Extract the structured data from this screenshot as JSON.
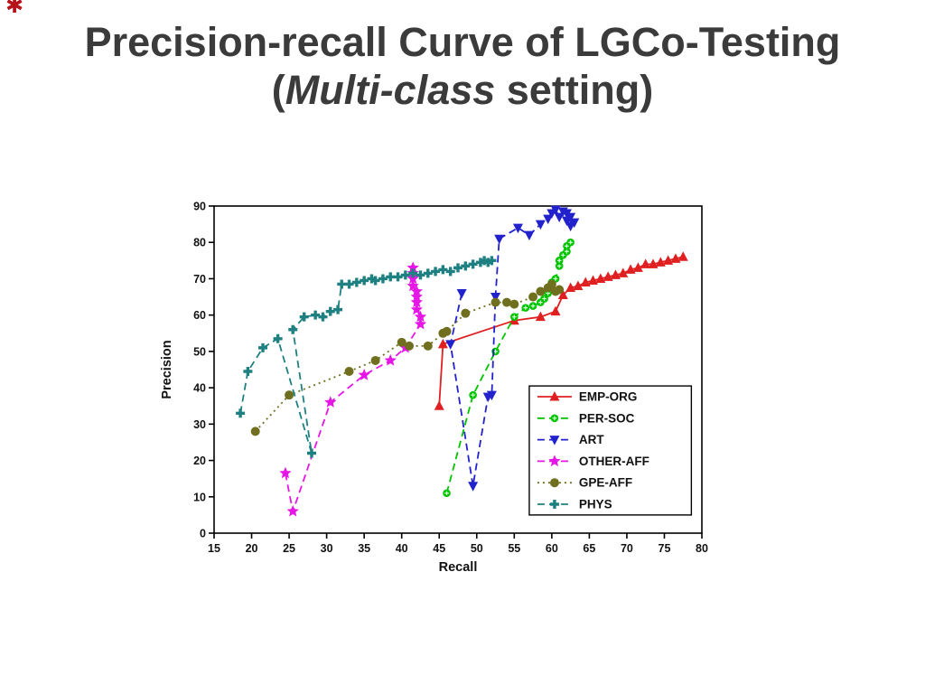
{
  "slide": {
    "logo_glyph": "✱",
    "title": {
      "line1": "Precision-recall Curve of LGCo-Testing",
      "line2_open": "(",
      "line2_italic": "Multi-class",
      "line2_rest": " setting)"
    }
  },
  "chart_data": {
    "type": "line",
    "title": "Precision-recall Curve of LGCo-Testing (Multi-class setting)",
    "xlabel": "Recall",
    "ylabel": "Precision",
    "xlim": [
      15,
      80
    ],
    "ylim": [
      0,
      90
    ],
    "xticks": [
      15,
      20,
      25,
      30,
      35,
      40,
      45,
      50,
      55,
      60,
      65,
      70,
      75,
      80
    ],
    "yticks": [
      0,
      10,
      20,
      30,
      40,
      50,
      60,
      70,
      80,
      90
    ],
    "grid": false,
    "legend_position": "inside lower right",
    "series": [
      {
        "name": "EMP-ORG",
        "color": "#e02020",
        "line_style": "solid",
        "marker": "triangle-up",
        "points": [
          [
            45,
            35
          ],
          [
            45.5,
            52
          ],
          [
            55,
            58.5
          ],
          [
            58.5,
            59.5
          ],
          [
            60.5,
            61
          ],
          [
            61.5,
            65.5
          ],
          [
            62.5,
            67.5
          ],
          [
            63.5,
            68
          ],
          [
            64.5,
            69
          ],
          [
            65.5,
            69.5
          ],
          [
            66.5,
            70
          ],
          [
            67.5,
            70.5
          ],
          [
            68.5,
            71
          ],
          [
            69.5,
            71.5
          ],
          [
            70.5,
            72.5
          ],
          [
            71.5,
            73
          ],
          [
            72.5,
            74
          ],
          [
            73.5,
            74
          ],
          [
            74.5,
            74.5
          ],
          [
            75.5,
            75
          ],
          [
            76.5,
            75.5
          ],
          [
            77.5,
            76
          ]
        ]
      },
      {
        "name": "PER-SOC",
        "color": "#00c400",
        "line_style": "dashed",
        "marker": "circle-plus",
        "points": [
          [
            46,
            11
          ],
          [
            49.5,
            38
          ],
          [
            52.5,
            50
          ],
          [
            55,
            59.5
          ],
          [
            56.5,
            62
          ],
          [
            57.5,
            62.5
          ],
          [
            58.5,
            63.5
          ],
          [
            59,
            64.5
          ],
          [
            59.5,
            66
          ],
          [
            60,
            69
          ],
          [
            60.5,
            70
          ],
          [
            61,
            73.5
          ],
          [
            61,
            75
          ],
          [
            61.5,
            76.5
          ],
          [
            62,
            77.5
          ],
          [
            62,
            79
          ],
          [
            62.5,
            80
          ]
        ]
      },
      {
        "name": "ART",
        "color": "#2222cc",
        "line_style": "dashed",
        "marker": "triangle-down",
        "points": [
          [
            48,
            66
          ],
          [
            46.5,
            52
          ],
          [
            49.5,
            13
          ],
          [
            51.5,
            37.5
          ],
          [
            52,
            38
          ],
          [
            52.5,
            65
          ],
          [
            53,
            81
          ],
          [
            55.5,
            84
          ],
          [
            57,
            82
          ],
          [
            58.5,
            85
          ],
          [
            59.5,
            86.5
          ],
          [
            60,
            88
          ],
          [
            60.5,
            89
          ],
          [
            61,
            87
          ],
          [
            61.5,
            88.5
          ],
          [
            62,
            86
          ],
          [
            62,
            88
          ],
          [
            62.5,
            84.5
          ],
          [
            62.5,
            87
          ],
          [
            63,
            85.5
          ]
        ]
      },
      {
        "name": "OTHER-AFF",
        "color": "#e616e6",
        "line_style": "dashed",
        "marker": "star",
        "points": [
          [
            24.5,
            16.5
          ],
          [
            25.5,
            6
          ],
          [
            30.5,
            36
          ],
          [
            35,
            43.5
          ],
          [
            38.5,
            47.5
          ],
          [
            40.5,
            51
          ],
          [
            42.5,
            57.5
          ],
          [
            42.5,
            59.5
          ],
          [
            42,
            61.5
          ],
          [
            42,
            63.5
          ],
          [
            42,
            65
          ],
          [
            42,
            66.5
          ],
          [
            41.5,
            68
          ],
          [
            41.5,
            70
          ],
          [
            41.5,
            71.5
          ],
          [
            41.5,
            73
          ]
        ]
      },
      {
        "name": "GPE-AFF",
        "color": "#6f6f1f",
        "line_style": "dotted",
        "marker": "circle",
        "points": [
          [
            20.5,
            28
          ],
          [
            25,
            38
          ],
          [
            33,
            44.5
          ],
          [
            36.5,
            47.5
          ],
          [
            40,
            52.5
          ],
          [
            41,
            51.5
          ],
          [
            43.5,
            51.5
          ],
          [
            45.5,
            55
          ],
          [
            46,
            55.5
          ],
          [
            48.5,
            60.5
          ],
          [
            52.5,
            63.5
          ],
          [
            54,
            63.5
          ],
          [
            55,
            63
          ],
          [
            57.5,
            65
          ],
          [
            58.5,
            66.5
          ],
          [
            59.5,
            67.5
          ],
          [
            60,
            68.5
          ],
          [
            60.5,
            66.5
          ],
          [
            61,
            67
          ]
        ]
      },
      {
        "name": "PHYS",
        "color": "#1e8080",
        "line_style": "dashed",
        "marker": "plus",
        "points": [
          [
            18.5,
            33
          ],
          [
            19.5,
            44.5
          ],
          [
            21.5,
            51
          ],
          [
            23.5,
            53.5
          ],
          [
            28,
            22
          ],
          [
            25.5,
            56
          ],
          [
            27,
            59.5
          ],
          [
            28.5,
            60
          ],
          [
            29.5,
            59.5
          ],
          [
            30.5,
            61
          ],
          [
            31.5,
            61.5
          ],
          [
            32,
            68.5
          ],
          [
            33,
            68.5
          ],
          [
            34,
            69
          ],
          [
            35,
            69.5
          ],
          [
            36,
            70
          ],
          [
            36.5,
            69.5
          ],
          [
            37.5,
            70
          ],
          [
            38.5,
            70.5
          ],
          [
            39.5,
            70.5
          ],
          [
            40.5,
            71
          ],
          [
            41.5,
            71.5
          ],
          [
            42.5,
            71
          ],
          [
            43.5,
            71.5
          ],
          [
            44.5,
            72
          ],
          [
            45.5,
            72.5
          ],
          [
            46.5,
            72
          ],
          [
            47.5,
            73
          ],
          [
            48.5,
            73.5
          ],
          [
            49.5,
            74
          ],
          [
            50.5,
            74.5
          ],
          [
            51,
            75
          ],
          [
            51.5,
            74.5
          ],
          [
            52,
            75
          ]
        ]
      }
    ]
  }
}
